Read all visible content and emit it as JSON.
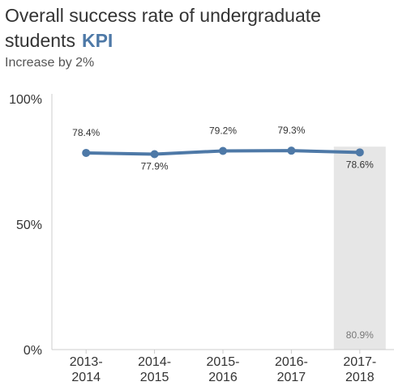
{
  "header": {
    "title": "Overall success rate of undergraduate students",
    "kpi_label": "KPI",
    "subtitle": "Increase by 2%"
  },
  "chart_data": {
    "type": "line",
    "categories": [
      [
        "2013-",
        "2014"
      ],
      [
        "2014-",
        "2015"
      ],
      [
        "2015-",
        "2016"
      ],
      [
        "2016-",
        "2017"
      ],
      [
        "2017-",
        "2018"
      ]
    ],
    "values": [
      78.4,
      77.9,
      79.2,
      79.3,
      78.6
    ],
    "data_labels": [
      "78.4%",
      "77.9%",
      "79.2%",
      "79.3%",
      "78.6%"
    ],
    "target": {
      "label": "80.9%",
      "value": 80.9,
      "category_index": 4
    },
    "y_ticks": [
      {
        "value": 100,
        "label": "100%"
      },
      {
        "value": 50,
        "label": "50%"
      },
      {
        "value": 0,
        "label": "0%"
      }
    ],
    "ylim": [
      0,
      100
    ],
    "line_color": "#4e79a7",
    "target_band_color": "#e6e6e6"
  }
}
